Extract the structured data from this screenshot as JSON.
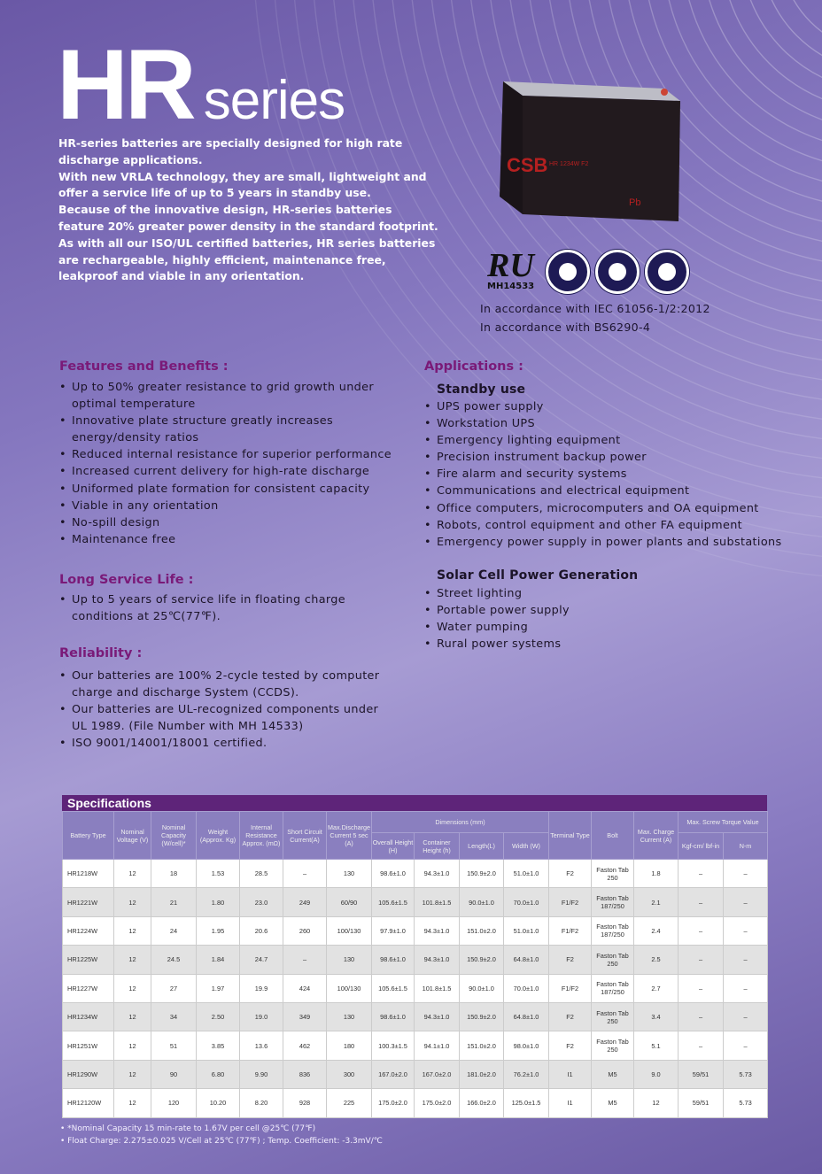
{
  "title": {
    "main": "HR",
    "sub": "series"
  },
  "intro": [
    "HR-series batteries are specially designed for high rate",
    "discharge applications.",
    "With new VRLA technology, they are small, lightweight and",
    "offer a service life of up to 5 years in standby use.",
    "Because of the innovative design, HR-series batteries",
    "feature 20% greater power density in the standard footprint.",
    "As with all our ISO/UL certified batteries, HR series batteries",
    "are rechargeable, highly efficient, maintenance free,",
    "leakproof and viable in any orientation."
  ],
  "product": {
    "brand": "CSB",
    "model": "HR 1234W F2"
  },
  "certifications": {
    "ul_number": "MH14533",
    "standards": [
      "In accordance with IEC 61056-1/2:2012",
      "In accordance with BS6290-4"
    ]
  },
  "features": {
    "heading": "Features and Benefits :",
    "items": [
      "Up to 50% greater resistance to grid growth under",
      "optimal temperature",
      "Innovative plate structure greatly increases",
      "energy/density ratios",
      "Reduced internal resistance for superior performance",
      "Increased current delivery for high-rate discharge",
      "Uniformed plate formation for consistent capacity",
      "Viable in any orientation",
      "No-spill design",
      "Maintenance free"
    ]
  },
  "service_life": {
    "heading": "Long Service Life :",
    "items": [
      "Up to 5 years of service life in floating charge",
      "conditions at 25℃(77℉)."
    ]
  },
  "reliability": {
    "heading": "Reliability :",
    "items": [
      "Our batteries are 100% 2-cycle tested by computer",
      "charge and discharge System (CCDS).",
      "Our batteries are UL-recognized components under",
      "UL 1989.   (File Number with MH 14533)",
      "ISO 9001/14001/18001 certified."
    ]
  },
  "applications": {
    "heading": "Applications :",
    "standby": {
      "heading": "Standby use",
      "items": [
        "UPS power supply",
        "Workstation UPS",
        "Emergency lighting equipment",
        "Precision instrument backup power",
        "Fire alarm and security systems",
        "Communications and electrical equipment",
        "Office computers, microcomputers and OA equipment",
        "Robots, control equipment and other FA equipment",
        "Emergency power supply in power plants and substations"
      ]
    },
    "solar": {
      "heading": "Solar Cell Power Generation",
      "items": [
        "Street lighting",
        "Portable power supply",
        "Water pumping",
        "Rural power systems"
      ]
    }
  },
  "specs": {
    "heading": "Specifications",
    "headers": {
      "type": "Battery Type",
      "voltage": "Nominal Voltage (V)",
      "capacity": "Nominal Capacity (W/cell)*",
      "weight": "Weight (Approx. Kg)",
      "resistance": "Internal Resistance Approx. (mΩ)",
      "short": "Short Circuit Current(A)",
      "maxdis": "Max.Discharge Current 5 sec (A)",
      "dimensions": "Dimensions (mm)",
      "overall": "Overall Height (H)",
      "container": "Container Height (h)",
      "length": "Length(L)",
      "width": "Width (W)",
      "terminal": "Terminal Type",
      "bolt": "Bolt",
      "maxcharge": "Max. Charge Current (A)",
      "torque": "Max. Screw Torque Value",
      "kgf": "Kgf-cm/ lbf-in",
      "nm": "N-m"
    },
    "rows": [
      [
        "HR1218W",
        "12",
        "18",
        "1.53",
        "28.5",
        "–",
        "130",
        "98.6±1.0",
        "94.3±1.0",
        "150.9±2.0",
        "51.0±1.0",
        "F2",
        "Faston Tab 250",
        "1.8",
        "–",
        "–"
      ],
      [
        "HR1221W",
        "12",
        "21",
        "1.80",
        "23.0",
        "249",
        "60/90",
        "105.6±1.5",
        "101.8±1.5",
        "90.0±1.0",
        "70.0±1.0",
        "F1/F2",
        "Faston Tab 187/250",
        "2.1",
        "–",
        "–"
      ],
      [
        "HR1224W",
        "12",
        "24",
        "1.95",
        "20.6",
        "260",
        "100/130",
        "97.9±1.0",
        "94.3±1.0",
        "151.0±2.0",
        "51.0±1.0",
        "F1/F2",
        "Faston Tab 187/250",
        "2.4",
        "–",
        "–"
      ],
      [
        "HR1225W",
        "12",
        "24.5",
        "1.84",
        "24.7",
        "–",
        "130",
        "98.6±1.0",
        "94.3±1.0",
        "150.9±2.0",
        "64.8±1.0",
        "F2",
        "Faston Tab 250",
        "2.5",
        "–",
        "–"
      ],
      [
        "HR1227W",
        "12",
        "27",
        "1.97",
        "19.9",
        "424",
        "100/130",
        "105.6±1.5",
        "101.8±1.5",
        "90.0±1.0",
        "70.0±1.0",
        "F1/F2",
        "Faston Tab 187/250",
        "2.7",
        "–",
        "–"
      ],
      [
        "HR1234W",
        "12",
        "34",
        "2.50",
        "19.0",
        "349",
        "130",
        "98.6±1.0",
        "94.3±1.0",
        "150.9±2.0",
        "64.8±1.0",
        "F2",
        "Faston Tab 250",
        "3.4",
        "–",
        "–"
      ],
      [
        "HR1251W",
        "12",
        "51",
        "3.85",
        "13.6",
        "462",
        "180",
        "100.3±1.5",
        "94.1±1.0",
        "151.0±2.0",
        "98.0±1.0",
        "F2",
        "Faston Tab 250",
        "5.1",
        "–",
        "–"
      ],
      [
        "HR1290W",
        "12",
        "90",
        "6.80",
        "9.90",
        "836",
        "300",
        "167.0±2.0",
        "167.0±2.0",
        "181.0±2.0",
        "76.2±1.0",
        "I1",
        "M5",
        "9.0",
        "59/51",
        "5.73"
      ],
      [
        "HR12120W",
        "12",
        "120",
        "10.20",
        "8.20",
        "928",
        "225",
        "175.0±2.0",
        "175.0±2.0",
        "166.0±2.0",
        "125.0±1.5",
        "I1",
        "M5",
        "12",
        "59/51",
        "5.73"
      ]
    ],
    "notes": [
      "*Nominal Capacity 15 min-rate to 1.67V per cell @25℃ (77℉)",
      "Float Charge: 2.275±0.025 V/Cell at 25℃ (77℉) ; Temp. Coefficient: -3.3mV/℃"
    ]
  },
  "colors": {
    "heading": "#7a1a78",
    "spec_bar": "#5e2479",
    "table_header": "#8a7fbf",
    "background": "#8577bf"
  }
}
